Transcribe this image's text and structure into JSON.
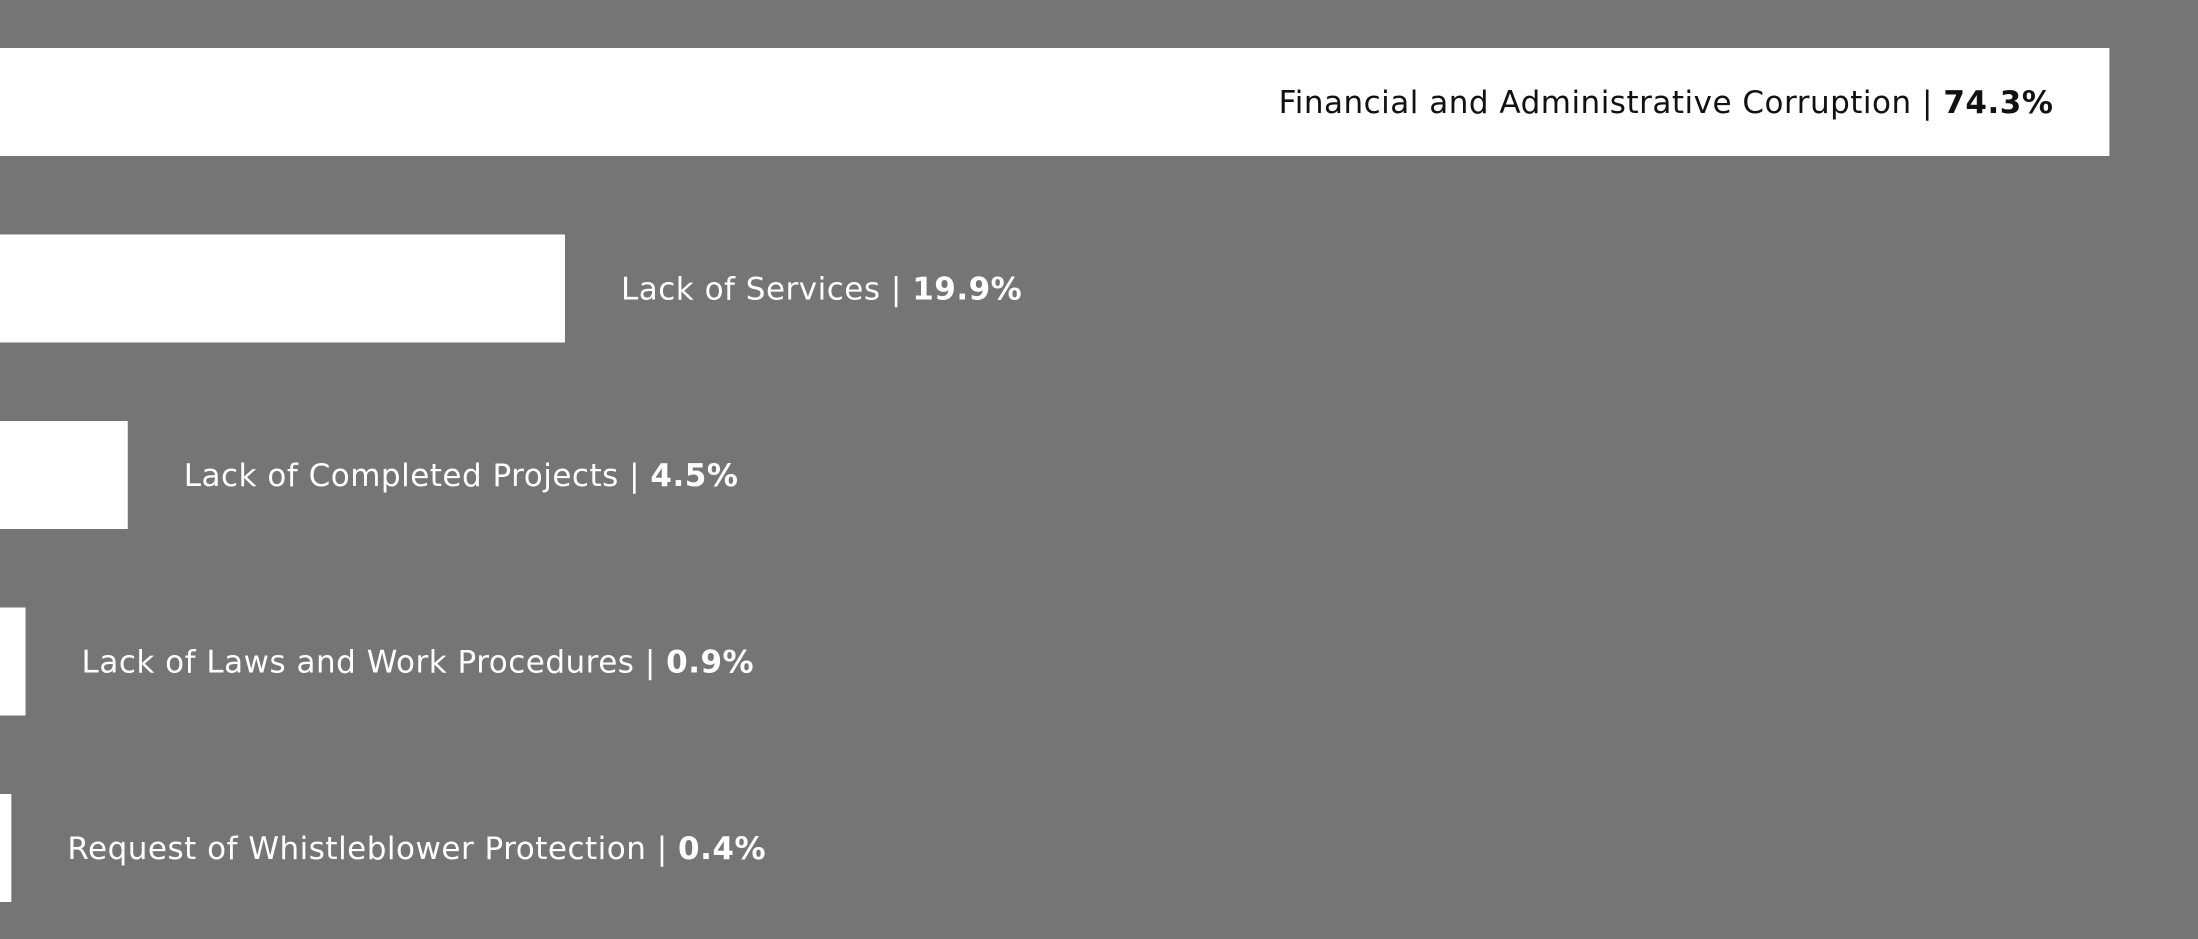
{
  "chart_data": {
    "type": "bar",
    "orientation": "horizontal",
    "categories": [
      "Financial and Administrative Corruption",
      "Lack of Services",
      "Lack of Completed Projects",
      "Lack of Laws and Work Procedures",
      "Request of Whistleblower Protection"
    ],
    "values": [
      74.3,
      19.9,
      4.5,
      0.9,
      0.4
    ],
    "value_labels": [
      "74.3%",
      "19.9%",
      "4.5%",
      "0.9%",
      "0.4%"
    ],
    "label_separator": " | ",
    "title": "",
    "xlabel": "",
    "ylabel": "",
    "xlim": [
      0,
      100
    ],
    "grid": false,
    "legend": "none",
    "colors": {
      "background": "#747574",
      "bar": "#ffffff",
      "label_on_bar": "#111111",
      "label_outside": "#ffffff"
    }
  }
}
